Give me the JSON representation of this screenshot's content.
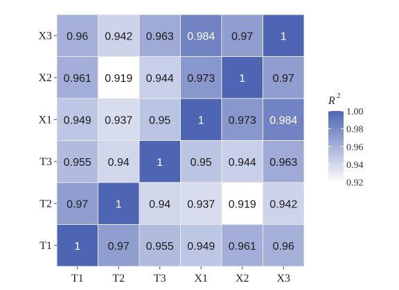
{
  "chart_data": {
    "type": "heatmap",
    "x_categories": [
      "T1",
      "T2",
      "T3",
      "X1",
      "X2",
      "X3"
    ],
    "y_categories": [
      "T1",
      "T2",
      "T3",
      "X1",
      "X2",
      "X3"
    ],
    "values": [
      [
        "1",
        "0.97",
        "0.955",
        "0.949",
        "0.961",
        "0.96"
      ],
      [
        "0.97",
        "1",
        "0.94",
        "0.937",
        "0.919",
        "0.942"
      ],
      [
        "0.955",
        "0.94",
        "1",
        "0.95",
        "0.944",
        "0.963"
      ],
      [
        "0.949",
        "0.937",
        "0.95",
        "1",
        "0.973",
        "0.984"
      ],
      [
        "0.961",
        "0.919",
        "0.944",
        "0.973",
        "1",
        "0.97"
      ],
      [
        "0.96",
        "0.942",
        "0.963",
        "0.984",
        "0.97",
        "1"
      ]
    ],
    "legend": {
      "title": "R",
      "title_superscript": "2",
      "ticks": [
        "1.00",
        "0.98",
        "0.96",
        "0.94",
        "0.92"
      ],
      "range": [
        0.919,
        1.0
      ]
    },
    "colors": {
      "low": "#ffffff",
      "high": "#4e65b3",
      "panel": "#ebebeb"
    }
  }
}
